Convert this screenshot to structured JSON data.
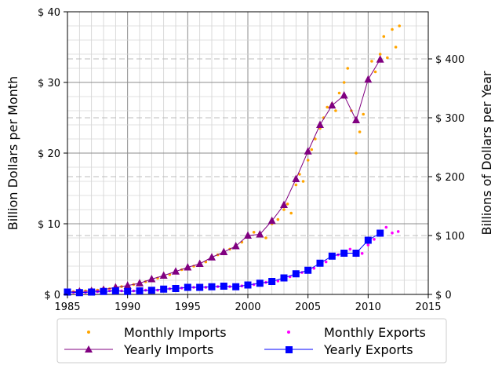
{
  "chart_data": {
    "type": "line",
    "ylabel_left": "Billion Dollars per Month",
    "ylabel_right": "Billions of Dollars per Year",
    "xlim": [
      1985,
      2015
    ],
    "ylim_left": [
      0,
      40
    ],
    "ylim_right": [
      0,
      480
    ],
    "x_ticks": [
      "1985",
      "1990",
      "1995",
      "2000",
      "2005",
      "2010",
      "2015"
    ],
    "y_ticks_left": [
      "$ 0",
      "$ 10",
      "$ 20",
      "$ 30",
      "$ 40"
    ],
    "y_ticks_right": [
      "$ 0",
      "$ 100",
      "$ 200",
      "$ 300",
      "$ 400"
    ],
    "grid": true,
    "legend_position": "bottom",
    "legend": [
      "Monthly Imports",
      "Monthly Exports",
      "Yearly Imports",
      "Yearly Exports"
    ],
    "colors": {
      "monthly_imports": "#ffa500",
      "monthly_exports": "#ff00ff",
      "yearly_imports": "#800080",
      "yearly_exports": "#0000ff"
    },
    "series": [
      {
        "name": "Yearly Imports",
        "axis": "right",
        "marker": "triangle",
        "x": [
          1985,
          1986,
          1987,
          1988,
          1989,
          1990,
          1991,
          1992,
          1993,
          1994,
          1995,
          1996,
          1997,
          1998,
          1999,
          2000,
          2001,
          2002,
          2003,
          2004,
          2005,
          2006,
          2007,
          2008,
          2009,
          2010,
          2011
        ],
        "values": [
          4,
          5,
          6,
          8,
          12,
          15,
          19,
          26,
          32,
          39,
          46,
          52,
          63,
          72,
          82,
          100,
          102,
          125,
          152,
          196,
          243,
          288,
          321,
          338,
          296,
          365,
          399
        ]
      },
      {
        "name": "Yearly Exports",
        "axis": "right",
        "marker": "square",
        "x": [
          1985,
          1986,
          1987,
          1988,
          1989,
          1990,
          1991,
          1992,
          1993,
          1994,
          1995,
          1996,
          1997,
          1998,
          1999,
          2000,
          2001,
          2002,
          2003,
          2004,
          2005,
          2006,
          2007,
          2008,
          2009,
          2010,
          2011
        ],
        "values": [
          4,
          3,
          4,
          5,
          6,
          5,
          6,
          7,
          9,
          10,
          12,
          12,
          13,
          14,
          13,
          16,
          19,
          22,
          28,
          35,
          41,
          53,
          65,
          70,
          70,
          92,
          104
        ]
      },
      {
        "name": "Monthly Imports",
        "axis": "left",
        "marker": "dot",
        "x": [
          1985.0,
          1985.5,
          1986.0,
          1986.5,
          1987.0,
          1987.5,
          1988.0,
          1988.5,
          1989.0,
          1989.5,
          1990.0,
          1990.5,
          1991.0,
          1991.5,
          1992.0,
          1992.5,
          1993.0,
          1993.5,
          1994.0,
          1994.5,
          1995.0,
          1995.5,
          1996.0,
          1996.5,
          1997.0,
          1997.5,
          1998.0,
          1998.5,
          1999.0,
          1999.5,
          2000.0,
          2000.5,
          2001.0,
          2001.5,
          2002.0,
          2002.5,
          2003.0,
          2003.3,
          2003.6,
          2004.0,
          2004.3,
          2004.6,
          2005.0,
          2005.3,
          2005.6,
          2006.0,
          2006.3,
          2006.6,
          2007.0,
          2007.3,
          2007.6,
          2008.0,
          2008.3,
          2008.6,
          2009.0,
          2009.3,
          2009.6,
          2010.0,
          2010.3,
          2010.6,
          2011.0,
          2011.3,
          2011.6,
          2012.0,
          2012.3,
          2012.6
        ],
        "values": [
          0.3,
          0.4,
          0.4,
          0.5,
          0.5,
          0.6,
          0.7,
          0.8,
          1.0,
          1.1,
          1.3,
          1.4,
          1.6,
          1.8,
          2.1,
          2.3,
          2.6,
          2.8,
          3.2,
          3.5,
          3.8,
          4.0,
          4.3,
          4.6,
          5.2,
          5.6,
          6.0,
          6.4,
          6.8,
          7.4,
          8.2,
          8.8,
          8.6,
          8.0,
          10.0,
          10.6,
          12.0,
          12.8,
          11.5,
          15.5,
          17.0,
          16.0,
          19.0,
          20.5,
          22.0,
          23.5,
          25.0,
          26.5,
          27.0,
          26.0,
          28.5,
          30.0,
          32.0,
          26.0,
          20.0,
          23.0,
          25.5,
          30.5,
          33.0,
          31.5,
          34.0,
          36.5,
          33.5,
          37.5,
          35.0,
          38.0
        ]
      },
      {
        "name": "Monthly Exports",
        "axis": "left",
        "marker": "dot",
        "x": [
          1985.0,
          1985.5,
          1986.0,
          1986.5,
          1987.0,
          1987.5,
          1988.0,
          1988.5,
          1989.0,
          1989.5,
          1990.0,
          1990.5,
          1991.0,
          1991.5,
          1992.0,
          1992.5,
          1993.0,
          1993.5,
          1994.0,
          1994.5,
          1995.0,
          1995.5,
          1996.0,
          1996.5,
          1997.0,
          1997.5,
          1998.0,
          1998.5,
          1999.0,
          1999.5,
          2000.0,
          2000.5,
          2001.0,
          2001.5,
          2002.0,
          2002.5,
          2003.0,
          2003.5,
          2004.0,
          2004.5,
          2005.0,
          2005.5,
          2006.0,
          2006.5,
          2007.0,
          2007.5,
          2008.0,
          2008.5,
          2009.0,
          2009.5,
          2010.0,
          2010.5,
          2011.0,
          2011.5,
          2012.0,
          2012.5
        ],
        "values": [
          0.3,
          0.3,
          0.3,
          0.3,
          0.3,
          0.4,
          0.4,
          0.5,
          0.5,
          0.5,
          0.4,
          0.5,
          0.5,
          0.6,
          0.6,
          0.6,
          0.7,
          0.8,
          0.8,
          0.9,
          1.0,
          1.0,
          1.0,
          1.0,
          1.1,
          1.1,
          1.2,
          1.1,
          1.1,
          1.2,
          1.3,
          1.4,
          1.5,
          1.7,
          1.8,
          1.9,
          2.2,
          2.5,
          2.8,
          3.1,
          3.4,
          3.7,
          4.2,
          4.6,
          5.2,
          5.6,
          6.0,
          6.4,
          5.5,
          5.8,
          7.0,
          7.8,
          8.5,
          9.5,
          8.7,
          8.9
        ]
      }
    ]
  }
}
